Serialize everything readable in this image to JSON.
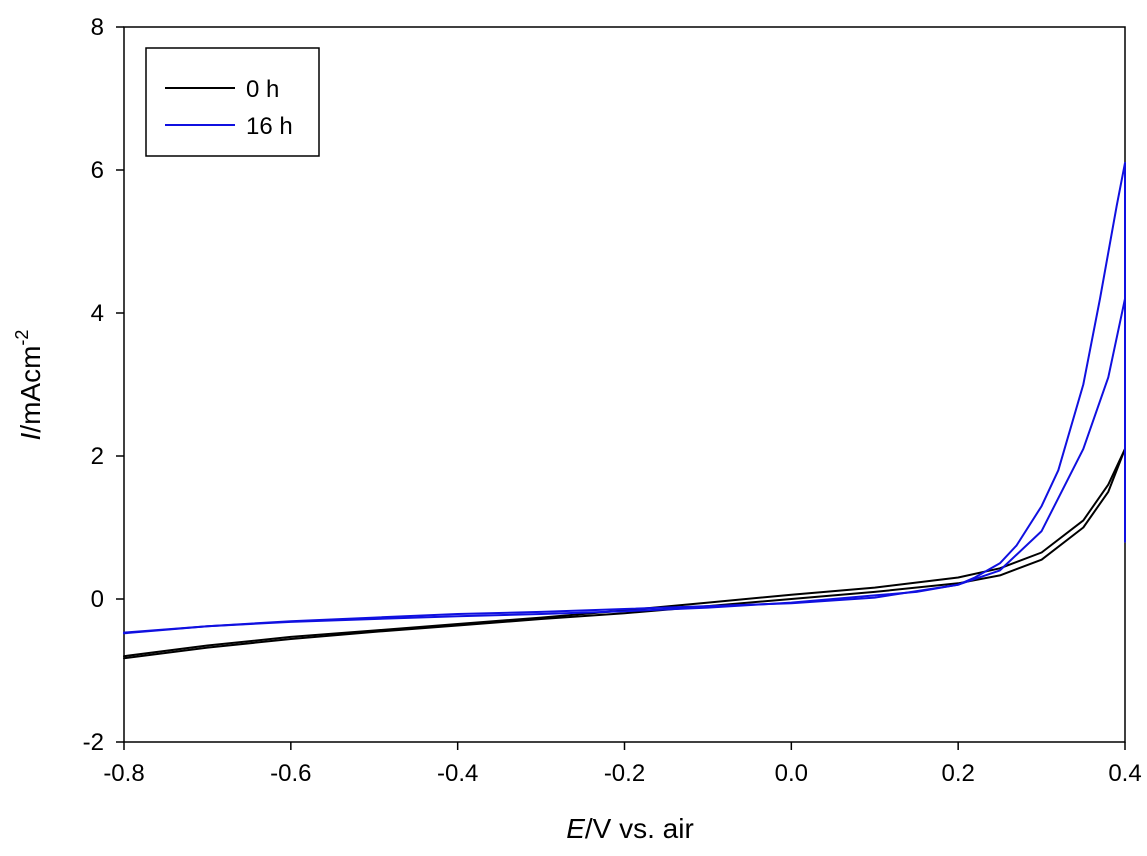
{
  "chart_data": {
    "type": "line",
    "title": "",
    "xlabel": {
      "italic": "E",
      "rest": "/V vs. air"
    },
    "ylabel": {
      "italic": "I",
      "rest": "/mAcm",
      "superscript": "-2"
    },
    "xlim": [
      -0.8,
      0.4
    ],
    "ylim": [
      -2,
      8
    ],
    "xticks": [
      -0.8,
      -0.6,
      -0.4,
      -0.2,
      0.0,
      0.2,
      0.4
    ],
    "xtick_labels": [
      "-0.8",
      "-0.6",
      "-0.4",
      "-0.2",
      "0.0",
      "0.2",
      "0.4"
    ],
    "yticks": [
      -2,
      0,
      2,
      4,
      6,
      8
    ],
    "ytick_labels": [
      "-2",
      "0",
      "2",
      "4",
      "6",
      "8"
    ],
    "grid": false,
    "legend_position": "top-left",
    "series": [
      {
        "name": "0 h",
        "color": "#000000",
        "segments": [
          {
            "x": [
              -0.8,
              -0.7,
              -0.6,
              -0.5,
              -0.4,
              -0.3,
              -0.2,
              -0.1,
              0.0,
              0.1,
              0.2,
              0.25,
              0.3,
              0.35,
              0.38,
              0.4
            ],
            "y": [
              -0.83,
              -0.68,
              -0.56,
              -0.46,
              -0.37,
              -0.28,
              -0.2,
              -0.1,
              0.0,
              0.1,
              0.22,
              0.33,
              0.55,
              1.0,
              1.5,
              2.1
            ]
          },
          {
            "x": [
              0.4,
              0.38,
              0.35,
              0.3,
              0.25,
              0.2,
              0.1,
              0.0,
              -0.1,
              -0.2,
              -0.3,
              -0.4,
              -0.5,
              -0.6,
              -0.7,
              -0.8
            ],
            "y": [
              2.1,
              1.6,
              1.1,
              0.65,
              0.43,
              0.3,
              0.16,
              0.06,
              -0.05,
              -0.16,
              -0.26,
              -0.35,
              -0.44,
              -0.53,
              -0.65,
              -0.8
            ]
          }
        ]
      },
      {
        "name": "16 h",
        "color": "#1010e0",
        "segments": [
          {
            "x": [
              -0.8,
              -0.7,
              -0.6,
              -0.5,
              -0.4,
              -0.3,
              -0.2,
              -0.1,
              0.0,
              0.1,
              0.2,
              0.25,
              0.3,
              0.35,
              0.38,
              0.4
            ],
            "y": [
              -0.48,
              -0.38,
              -0.31,
              -0.26,
              -0.21,
              -0.18,
              -0.14,
              -0.1,
              -0.06,
              0.02,
              0.2,
              0.4,
              0.95,
              2.1,
              3.1,
              4.2
            ]
          },
          {
            "x": [
              0.4,
              0.4,
              0.4,
              0.39,
              0.37,
              0.35,
              0.32,
              0.3,
              0.27,
              0.25,
              0.22,
              0.2,
              0.15,
              0.1,
              0.0,
              -0.1,
              -0.2,
              -0.3,
              -0.4,
              -0.5,
              -0.6,
              -0.7,
              -0.8
            ],
            "y": [
              4.2,
              0.8,
              6.1,
              5.5,
              4.2,
              3.0,
              1.8,
              1.3,
              0.75,
              0.5,
              0.3,
              0.2,
              0.1,
              0.05,
              -0.05,
              -0.12,
              -0.17,
              -0.21,
              -0.24,
              -0.28,
              -0.32,
              -0.38,
              -0.47
            ]
          }
        ]
      }
    ]
  }
}
